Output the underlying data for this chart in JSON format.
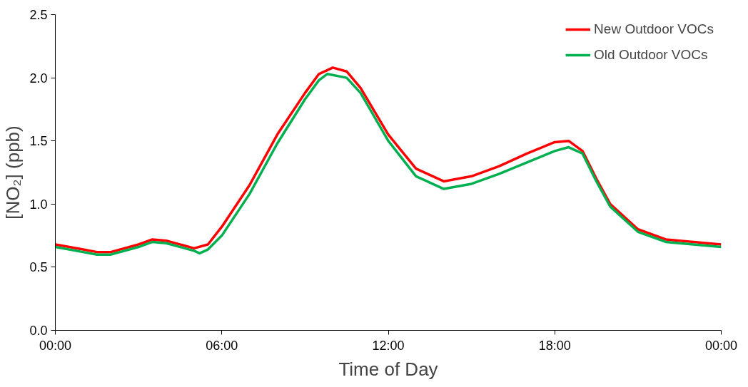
{
  "chart_data": {
    "type": "line",
    "xlabel": "Time of Day",
    "ylabel": "[NO₂] (ppb)",
    "xlim": [
      0,
      24
    ],
    "xticks": [
      {
        "value": 0,
        "label": "00:00"
      },
      {
        "value": 6,
        "label": "06:00"
      },
      {
        "value": 12,
        "label": "12:00"
      },
      {
        "value": 18,
        "label": "18:00"
      },
      {
        "value": 24,
        "label": "00:00"
      }
    ],
    "ylim": [
      0,
      2.5
    ],
    "yticks": [
      {
        "value": 0,
        "label": "0.0"
      },
      {
        "value": 0.5,
        "label": "0.5"
      },
      {
        "value": 1,
        "label": "1.0"
      },
      {
        "value": 1.5,
        "label": "1.5"
      },
      {
        "value": 2,
        "label": "2.0"
      },
      {
        "value": 2.5,
        "label": "2.5"
      }
    ],
    "grid": false,
    "legend": "top right",
    "marker": "none",
    "line_style": "solid",
    "series": [
      {
        "name": "New Outdoor VOCs",
        "color": "#ff0000",
        "x": [
          0,
          1,
          1.5,
          2,
          3,
          3.5,
          4,
          5,
          5.5,
          6,
          7,
          8,
          9,
          9.5,
          10,
          10.5,
          11,
          12,
          13,
          14,
          15,
          16,
          17,
          18,
          18.5,
          19,
          19.5,
          20,
          21,
          22,
          23,
          24
        ],
        "values": [
          0.68,
          0.64,
          0.62,
          0.62,
          0.68,
          0.72,
          0.71,
          0.65,
          0.68,
          0.82,
          1.15,
          1.55,
          1.88,
          2.03,
          2.08,
          2.05,
          1.92,
          1.55,
          1.28,
          1.18,
          1.22,
          1.3,
          1.4,
          1.49,
          1.5,
          1.42,
          1.2,
          1.0,
          0.8,
          0.72,
          0.7,
          0.68
        ]
      },
      {
        "name": "Old Outdoor VOCs",
        "color": "#00b050",
        "x": [
          0,
          1,
          1.5,
          2,
          3,
          3.5,
          4,
          5,
          5.2,
          5.5,
          6,
          7,
          8,
          9,
          9.5,
          9.8,
          10.5,
          11,
          12,
          13,
          14,
          15,
          16,
          17,
          18,
          18.5,
          19,
          19.5,
          20,
          21,
          22,
          23,
          24
        ],
        "values": [
          0.66,
          0.62,
          0.6,
          0.6,
          0.66,
          0.7,
          0.69,
          0.63,
          0.61,
          0.64,
          0.75,
          1.08,
          1.48,
          1.83,
          1.98,
          2.03,
          2.0,
          1.88,
          1.5,
          1.22,
          1.12,
          1.16,
          1.24,
          1.33,
          1.42,
          1.45,
          1.4,
          1.18,
          0.98,
          0.78,
          0.7,
          0.68,
          0.66
        ]
      }
    ]
  }
}
